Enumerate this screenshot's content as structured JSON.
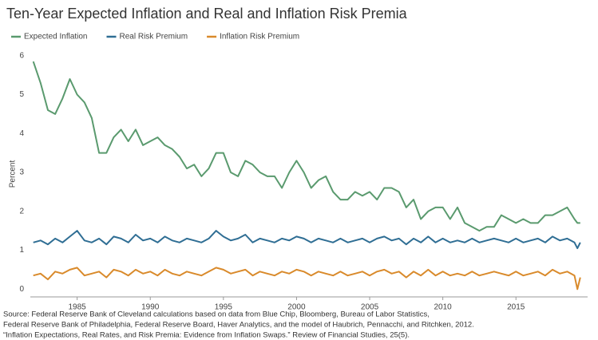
{
  "chart_data": {
    "type": "line",
    "title": "Ten-Year Expected Inflation and Real and Inflation Risk Premia",
    "y_label": "Percent",
    "x": [
      1982.0,
      1982.5,
      1983.0,
      1983.5,
      1984.0,
      1984.5,
      1985.0,
      1985.5,
      1986.0,
      1986.5,
      1987.0,
      1987.5,
      1988.0,
      1988.5,
      1989.0,
      1989.5,
      1990.0,
      1990.5,
      1991.0,
      1991.5,
      1992.0,
      1992.5,
      1993.0,
      1993.5,
      1994.0,
      1994.5,
      1995.0,
      1995.5,
      1996.0,
      1996.5,
      1997.0,
      1997.5,
      1998.0,
      1998.5,
      1999.0,
      1999.5,
      2000.0,
      2000.5,
      2001.0,
      2001.5,
      2002.0,
      2002.5,
      2003.0,
      2003.5,
      2004.0,
      2004.5,
      2005.0,
      2005.5,
      2006.0,
      2006.5,
      2007.0,
      2007.5,
      2008.0,
      2008.5,
      2009.0,
      2009.5,
      2010.0,
      2010.5,
      2011.0,
      2011.5,
      2012.0,
      2012.5,
      2013.0,
      2013.5,
      2014.0,
      2014.5,
      2015.0,
      2015.5,
      2016.0,
      2016.5,
      2017.0,
      2017.5,
      2018.0,
      2018.5,
      2019.0,
      2019.2,
      2019.4
    ],
    "series": [
      {
        "name": "Expected Inflation",
        "color": "#5a9a6e",
        "values": [
          5.85,
          5.3,
          4.6,
          4.5,
          4.9,
          5.4,
          5.0,
          4.8,
          4.4,
          3.5,
          3.5,
          3.9,
          4.1,
          3.8,
          4.1,
          3.7,
          3.8,
          3.9,
          3.7,
          3.6,
          3.4,
          3.1,
          3.2,
          2.9,
          3.1,
          3.5,
          3.5,
          3.0,
          2.9,
          3.3,
          3.2,
          3.0,
          2.9,
          2.9,
          2.6,
          3.0,
          3.3,
          3.0,
          2.6,
          2.8,
          2.9,
          2.5,
          2.3,
          2.3,
          2.5,
          2.4,
          2.5,
          2.3,
          2.6,
          2.6,
          2.5,
          2.1,
          2.3,
          1.8,
          2.0,
          2.1,
          2.1,
          1.8,
          2.1,
          1.7,
          1.6,
          1.5,
          1.6,
          1.6,
          1.9,
          1.8,
          1.7,
          1.8,
          1.7,
          1.7,
          1.9,
          1.9,
          2.0,
          2.1,
          1.8,
          1.7,
          1.7
        ]
      },
      {
        "name": "Real Risk Premium",
        "color": "#2f6e94",
        "values": [
          1.2,
          1.25,
          1.15,
          1.3,
          1.2,
          1.35,
          1.5,
          1.25,
          1.2,
          1.3,
          1.15,
          1.35,
          1.3,
          1.2,
          1.4,
          1.25,
          1.3,
          1.2,
          1.35,
          1.25,
          1.2,
          1.3,
          1.25,
          1.2,
          1.3,
          1.5,
          1.35,
          1.25,
          1.3,
          1.4,
          1.2,
          1.3,
          1.25,
          1.2,
          1.3,
          1.25,
          1.35,
          1.3,
          1.2,
          1.3,
          1.25,
          1.2,
          1.3,
          1.2,
          1.25,
          1.3,
          1.2,
          1.3,
          1.35,
          1.25,
          1.3,
          1.15,
          1.3,
          1.2,
          1.35,
          1.2,
          1.3,
          1.2,
          1.25,
          1.2,
          1.3,
          1.2,
          1.25,
          1.3,
          1.25,
          1.2,
          1.3,
          1.2,
          1.25,
          1.3,
          1.2,
          1.35,
          1.25,
          1.3,
          1.2,
          1.05,
          1.2
        ]
      },
      {
        "name": "Inflation Risk Premium",
        "color": "#d98a2b",
        "values": [
          0.35,
          0.4,
          0.25,
          0.45,
          0.4,
          0.5,
          0.55,
          0.35,
          0.4,
          0.45,
          0.3,
          0.5,
          0.45,
          0.35,
          0.5,
          0.4,
          0.45,
          0.35,
          0.5,
          0.4,
          0.35,
          0.45,
          0.4,
          0.35,
          0.45,
          0.55,
          0.5,
          0.4,
          0.45,
          0.5,
          0.35,
          0.45,
          0.4,
          0.35,
          0.45,
          0.4,
          0.5,
          0.45,
          0.35,
          0.45,
          0.4,
          0.35,
          0.45,
          0.35,
          0.4,
          0.45,
          0.35,
          0.45,
          0.5,
          0.4,
          0.45,
          0.3,
          0.45,
          0.35,
          0.5,
          0.35,
          0.45,
          0.35,
          0.4,
          0.35,
          0.45,
          0.35,
          0.4,
          0.45,
          0.4,
          0.35,
          0.45,
          0.35,
          0.4,
          0.45,
          0.35,
          0.5,
          0.4,
          0.45,
          0.35,
          0.0,
          0.3
        ]
      }
    ],
    "xlim": [
      1981.8,
      2019.9
    ],
    "xticks": [
      1985,
      1990,
      1995,
      2000,
      2005,
      2010,
      2015
    ],
    "ylim": [
      -0.2,
      6.2
    ],
    "yticks": [
      0,
      1,
      2,
      3,
      4,
      5,
      6
    ],
    "source": [
      "Source: Federal Reserve Bank of Cleveland calculations based on data from Blue Chip, Bloomberg, Bureau of Labor Statistics,",
      "Federal Reserve Bank of Philadelphia, Federal Reserve Board, Haver Analytics, and the model of Haubrich, Pennacchi, and Ritchken, 2012.",
      "“Inflation Expectations, Real Rates, and Risk Premia: Evidence from Inflation Swaps.” Review of Financial Studies, 25(5)."
    ]
  }
}
